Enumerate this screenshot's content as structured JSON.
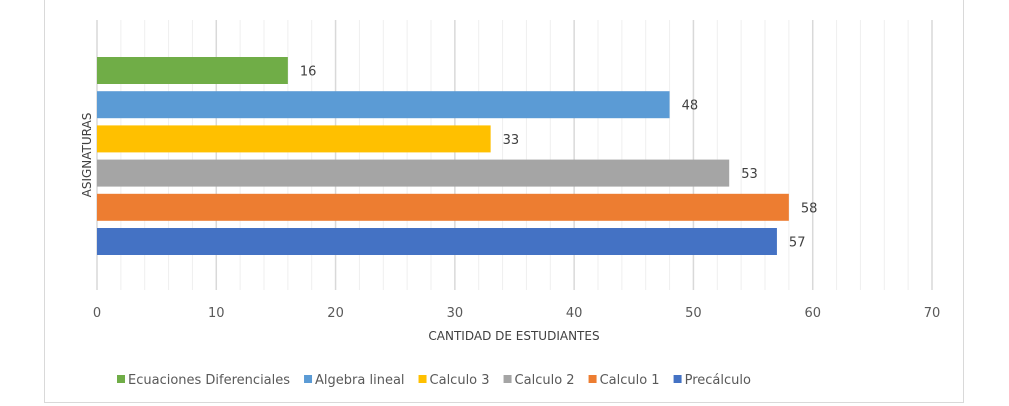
{
  "chart_data": {
    "type": "bar",
    "orientation": "horizontal",
    "title": "",
    "xlabel": "CANTIDAD DE ESTUDIANTES",
    "ylabel": "ASIGNATURAS",
    "xlim": [
      0,
      70
    ],
    "xticks": [
      0,
      10,
      20,
      30,
      40,
      50,
      60,
      70
    ],
    "grid": "vertical major every 10, minor every 2",
    "legend_position": "bottom",
    "series": [
      {
        "name": "Ecuaciones Diferenciales",
        "value": 16,
        "color": "#70ad47"
      },
      {
        "name": "Algebra lineal",
        "value": 48,
        "color": "#5b9bd5"
      },
      {
        "name": "Calculo 3",
        "value": 33,
        "color": "#ffc000"
      },
      {
        "name": "Calculo 2",
        "value": 53,
        "color": "#a5a5a5"
      },
      {
        "name": "Calculo 1",
        "value": 58,
        "color": "#ed7d31"
      },
      {
        "name": "Precálculo",
        "value": 57,
        "color": "#4472c4"
      }
    ]
  }
}
